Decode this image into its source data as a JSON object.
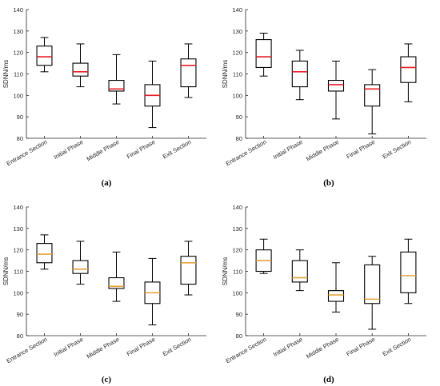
{
  "chart_data": [
    {
      "type": "box",
      "panel_label": "(a)",
      "ylabel": "SDNN/ms",
      "ylim": [
        80,
        140
      ],
      "yticks": [
        80,
        90,
        100,
        110,
        120,
        130,
        140
      ],
      "categories": [
        "Entrance Section",
        "Initial Phase",
        "Middle Phase",
        "Final Phase",
        "Exit Section"
      ],
      "boxes": [
        {
          "min": 111,
          "q1": 114,
          "median": 118,
          "q3": 123,
          "max": 127
        },
        {
          "min": 104,
          "q1": 109,
          "median": 111,
          "q3": 115,
          "max": 124
        },
        {
          "min": 96,
          "q1": 102,
          "median": 103,
          "q3": 107,
          "max": 119
        },
        {
          "min": 85,
          "q1": 95,
          "median": 100,
          "q3": 105,
          "max": 116
        },
        {
          "min": 99,
          "q1": 104,
          "median": 114,
          "q3": 117,
          "max": 124
        }
      ],
      "median_color": "#e8202a"
    },
    {
      "type": "box",
      "panel_label": "(b)",
      "ylabel": "SDNN/ms",
      "ylim": [
        80,
        140
      ],
      "yticks": [
        80,
        90,
        100,
        110,
        120,
        130,
        140
      ],
      "categories": [
        "Entrance Section",
        "Initial Phase",
        "Middle Phase",
        "Final Phase",
        "Exit Section"
      ],
      "boxes": [
        {
          "min": 109,
          "q1": 113,
          "median": 118,
          "q3": 126,
          "max": 129
        },
        {
          "min": 98,
          "q1": 104,
          "median": 111,
          "q3": 116,
          "max": 121
        },
        {
          "min": 89,
          "q1": 102,
          "median": 105,
          "q3": 107,
          "max": 116
        },
        {
          "min": 82,
          "q1": 95,
          "median": 103,
          "q3": 105,
          "max": 112
        },
        {
          "min": 97,
          "q1": 106,
          "median": 113,
          "q3": 118,
          "max": 124
        }
      ],
      "median_color": "#e8202a"
    },
    {
      "type": "box",
      "panel_label": "(c)",
      "ylabel": "SDNN/ms",
      "ylim": [
        80,
        140
      ],
      "yticks": [
        80,
        90,
        100,
        110,
        120,
        130,
        140
      ],
      "categories": [
        "Entrance Section",
        "Initial Phase",
        "Middle Phase",
        "Final Phase",
        "Exit Section"
      ],
      "boxes": [
        {
          "min": 111,
          "q1": 114,
          "median": 118,
          "q3": 123,
          "max": 127
        },
        {
          "min": 104,
          "q1": 109,
          "median": 111,
          "q3": 115,
          "max": 124
        },
        {
          "min": 96,
          "q1": 102,
          "median": 103,
          "q3": 107,
          "max": 119
        },
        {
          "min": 85,
          "q1": 95,
          "median": 100,
          "q3": 105,
          "max": 116
        },
        {
          "min": 99,
          "q1": 104,
          "median": 114,
          "q3": 117,
          "max": 124
        }
      ],
      "median_color": "#e8a33a"
    },
    {
      "type": "box",
      "panel_label": "(d)",
      "ylabel": "SDNN/ms",
      "ylim": [
        80,
        140
      ],
      "yticks": [
        80,
        90,
        100,
        110,
        120,
        130,
        140
      ],
      "categories": [
        "Entrance Section",
        "Initial Phase",
        "Middle Phase",
        "Final Phase",
        "Exit Section"
      ],
      "boxes": [
        {
          "min": 109,
          "q1": 110,
          "median": 115,
          "q3": 120,
          "max": 125
        },
        {
          "min": 101,
          "q1": 105,
          "median": 107,
          "q3": 115,
          "max": 120
        },
        {
          "min": 91,
          "q1": 96,
          "median": 99,
          "q3": 101,
          "max": 114
        },
        {
          "min": 83,
          "q1": 95,
          "median": 97,
          "q3": 113,
          "max": 117
        },
        {
          "min": 95,
          "q1": 100,
          "median": 108,
          "q3": 119,
          "max": 125
        }
      ],
      "median_color": "#e8a33a"
    }
  ]
}
